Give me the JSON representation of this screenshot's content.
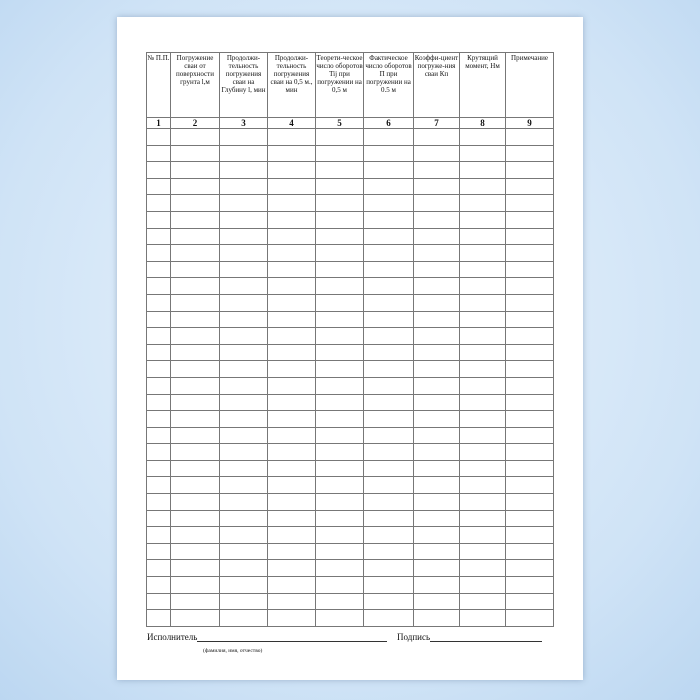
{
  "headers": [
    "№ П.П.",
    "Погружение сваи от поверхности грунта l,м",
    "Продолжи-тельность погружения сваи на Глубину l, мин",
    "Продолжи-тельность погружения сваи на 0,5 м., мин",
    "Теорети-ческое число оборотов Tij при погружении на 0,5 м",
    "Фактическое число оборотов П при погружении на 0.5 м",
    "Коэффи-циент погруже-ния сваи Кп",
    "Крутящий момент, Нм",
    "Примечание"
  ],
  "numbers": [
    "1",
    "2",
    "3",
    "4",
    "5",
    "6",
    "7",
    "8",
    "9"
  ],
  "footer": {
    "executor": "Исполнитель",
    "executor_hint": "(фамилия, имя, отчество)",
    "signature": "Подпись"
  }
}
